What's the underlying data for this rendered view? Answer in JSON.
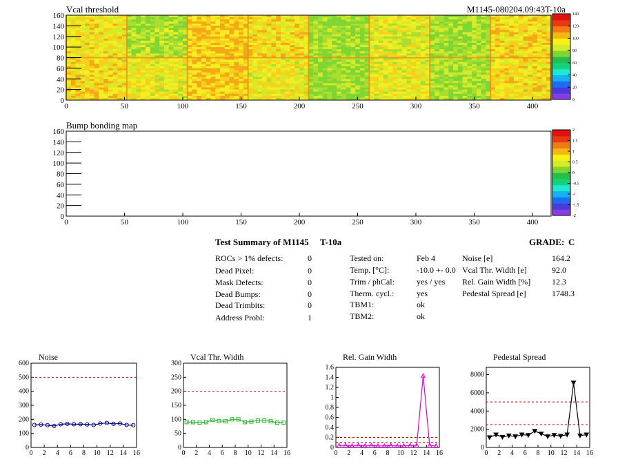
{
  "heatmaps": {
    "vcal": {
      "title": "Vcal threshold",
      "module_label": "M1145-080204.09:43T-10a",
      "x_ticks": [
        "0",
        "50",
        "100",
        "150",
        "200",
        "250",
        "300",
        "350",
        "400"
      ],
      "y_ticks": [
        "0",
        "20",
        "40",
        "60",
        "80",
        "100",
        "120",
        "140",
        "160"
      ],
      "palette_ticks": [
        "0",
        "20",
        "40",
        "60",
        "80",
        "100",
        "120",
        "140"
      ]
    },
    "bump": {
      "title": "Bump bonding map",
      "x_ticks": [
        "0",
        "50",
        "100",
        "150",
        "200",
        "250",
        "300",
        "350",
        "400"
      ],
      "y_ticks": [
        "0",
        "20",
        "40",
        "60",
        "80",
        "100",
        "120",
        "140",
        "160"
      ],
      "palette_ticks": [
        "-2",
        "-1.5",
        "-1",
        "-0.5",
        "0",
        "0.5",
        "1",
        "1.5",
        "2"
      ]
    }
  },
  "summary": {
    "title": "Test Summary of M1145",
    "temp_tag": "T-10a",
    "grade_label": "GRADE:",
    "grade": "C",
    "col1": [
      {
        "label": "ROCs > 1% defects:",
        "value": "0"
      },
      {
        "label": "Dead Pixel:",
        "value": "0"
      },
      {
        "label": "Mask Defects:",
        "value": "0"
      },
      {
        "label": "Dead Bumps:",
        "value": "0"
      },
      {
        "label": "Dead Trimbits:",
        "value": "0"
      },
      {
        "label": "Address Probl:",
        "value": "1"
      }
    ],
    "col2": [
      {
        "label": "Tested on:",
        "value": "Feb 4"
      },
      {
        "label": "Temp. [°C]:",
        "value": "-10.0 +- 0.0"
      },
      {
        "label": "Trim / phCal:",
        "value": "yes / yes"
      },
      {
        "label": "Therm. cycl.:",
        "value": "yes"
      },
      {
        "label": "TBM1:",
        "value": "ok"
      },
      {
        "label": "TBM2:",
        "value": "ok"
      }
    ],
    "col3": [
      {
        "label": "Noise [e]",
        "value": "164.2"
      },
      {
        "label": "Vcal Thr. Width [e]",
        "value": "92.0"
      },
      {
        "label": "Rel. Gain Width [%]",
        "value": "12.3"
      },
      {
        "label": "Pedestal Spread [e]",
        "value": "1748.3"
      }
    ]
  },
  "colors": {
    "noise": "#00008b",
    "vcal_width": "#2db32d",
    "gain_width": "#e000e0",
    "pedestal": "#000000",
    "limit": "#cc0000"
  },
  "chart_data": [
    {
      "type": "line",
      "title": "Noise",
      "x": [
        0,
        1,
        2,
        3,
        4,
        5,
        6,
        7,
        8,
        9,
        10,
        11,
        12,
        13,
        14,
        15
      ],
      "values": [
        160,
        163,
        158,
        153,
        165,
        168,
        165,
        166,
        164,
        160,
        170,
        174,
        168,
        170,
        160,
        158
      ],
      "xlim": [
        0,
        16
      ],
      "ylim": [
        0,
        600
      ],
      "x_ticks": [
        "0",
        "2",
        "4",
        "6",
        "8",
        "10",
        "12",
        "14",
        "16"
      ],
      "y_ticks": [
        "0",
        "100",
        "200",
        "300",
        "400",
        "500",
        "600"
      ],
      "limits": [
        500
      ],
      "marker": "circle"
    },
    {
      "type": "line",
      "title": "Vcal Thr. Width",
      "x": [
        0,
        1,
        2,
        3,
        4,
        5,
        6,
        7,
        8,
        9,
        10,
        11,
        12,
        13,
        14,
        15
      ],
      "values": [
        90,
        90,
        88,
        90,
        98,
        94,
        93,
        100,
        100,
        90,
        92,
        96,
        96,
        93,
        88,
        88
      ],
      "xlim": [
        0,
        16
      ],
      "ylim": [
        0,
        300
      ],
      "x_ticks": [
        "0",
        "2",
        "4",
        "6",
        "8",
        "10",
        "12",
        "14",
        "16"
      ],
      "y_ticks": [
        "0",
        "50",
        "100",
        "150",
        "200",
        "250",
        "300"
      ],
      "limits": [
        200
      ],
      "marker": "square"
    },
    {
      "type": "line",
      "title": "Rel. Gain Width",
      "x": [
        0,
        1,
        2,
        3,
        4,
        5,
        6,
        7,
        8,
        9,
        10,
        11,
        12,
        13,
        14,
        15
      ],
      "values": [
        0.04,
        0.04,
        0.03,
        0.04,
        0.03,
        0.04,
        0.03,
        0.03,
        0.04,
        0.03,
        0.03,
        0.04,
        0.04,
        1.43,
        0.04,
        0.03
      ],
      "xlim": [
        0,
        16
      ],
      "ylim": [
        0,
        1.6
      ],
      "x_ticks": [
        "0",
        "2",
        "4",
        "6",
        "8",
        "10",
        "12",
        "14",
        "16"
      ],
      "y_ticks": [
        "0",
        "0.2",
        "0.4",
        "0.6",
        "0.8",
        "1",
        "1.2",
        "1.4",
        "1.6"
      ],
      "limits": [
        0.1,
        0.2
      ],
      "marker": "triangle-up"
    },
    {
      "type": "line",
      "title": "Pedestal Spread",
      "x": [
        0,
        1,
        2,
        3,
        4,
        5,
        6,
        7,
        8,
        9,
        10,
        11,
        12,
        13,
        14,
        15
      ],
      "values": [
        1100,
        1400,
        1150,
        1300,
        1200,
        1400,
        1350,
        1800,
        1500,
        1200,
        1350,
        1250,
        1400,
        7100,
        1300,
        1400
      ],
      "xlim": [
        0,
        16
      ],
      "ylim": [
        0,
        8800
      ],
      "x_ticks": [
        "0",
        "2",
        "4",
        "6",
        "8",
        "10",
        "12",
        "14",
        "16"
      ],
      "y_ticks": [
        "0",
        "2000",
        "4000",
        "6000",
        "8000"
      ],
      "limits": [
        2500,
        5000
      ],
      "marker": "triangle-down"
    }
  ]
}
